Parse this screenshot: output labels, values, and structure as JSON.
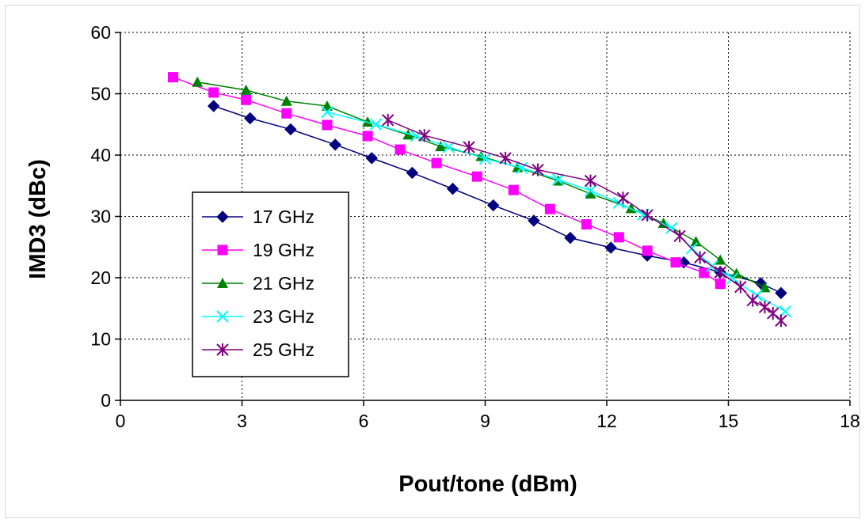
{
  "chart_data": {
    "type": "line",
    "title": "",
    "xlabel": "Pout/tone (dBm)",
    "ylabel": "IMD3 (dBc)",
    "xlim": [
      0,
      18
    ],
    "ylim": [
      0,
      60
    ],
    "xticks": [
      0,
      3,
      6,
      9,
      12,
      15,
      18
    ],
    "yticks": [
      0,
      10,
      20,
      30,
      40,
      50,
      60
    ],
    "grid": "dotted",
    "legend_position": "left",
    "series": [
      {
        "name": "17 GHz",
        "color": "#000080",
        "marker": "diamond",
        "points": [
          [
            2.3,
            48
          ],
          [
            3.2,
            46
          ],
          [
            4.2,
            44.2
          ],
          [
            5.3,
            41.7
          ],
          [
            6.2,
            39.5
          ],
          [
            7.2,
            37.1
          ],
          [
            8.2,
            34.5
          ],
          [
            9.2,
            31.8
          ],
          [
            10.2,
            29.3
          ],
          [
            11.1,
            26.5
          ],
          [
            12.1,
            24.9
          ],
          [
            13,
            23.6
          ],
          [
            13.9,
            22.5
          ],
          [
            14.8,
            20.9
          ],
          [
            15.8,
            19.1
          ],
          [
            16.3,
            17.5
          ]
        ]
      },
      {
        "name": "19 GHz",
        "color": "#ff00ff",
        "marker": "square",
        "points": [
          [
            1.3,
            52.7
          ],
          [
            2.3,
            50.2
          ],
          [
            3.1,
            49
          ],
          [
            4.1,
            46.8
          ],
          [
            5.1,
            44.9
          ],
          [
            6.1,
            43.1
          ],
          [
            6.9,
            40.9
          ],
          [
            7.8,
            38.7
          ],
          [
            8.8,
            36.5
          ],
          [
            9.7,
            34.3
          ],
          [
            10.6,
            31.2
          ],
          [
            11.5,
            28.7
          ],
          [
            12.3,
            26.6
          ],
          [
            13,
            24.4
          ],
          [
            13.7,
            22.5
          ],
          [
            14.4,
            20.8
          ],
          [
            14.8,
            19
          ]
        ]
      },
      {
        "name": "21 GHz",
        "color": "#008000",
        "marker": "triangle",
        "points": [
          [
            1.9,
            51.9
          ],
          [
            3.1,
            50.6
          ],
          [
            4.1,
            48.8
          ],
          [
            5.1,
            48
          ],
          [
            6.1,
            45.4
          ],
          [
            7.1,
            43.3
          ],
          [
            7.9,
            41.4
          ],
          [
            8.9,
            39.8
          ],
          [
            9.8,
            38
          ],
          [
            10.8,
            35.8
          ],
          [
            11.6,
            33.7
          ],
          [
            12.6,
            31.3
          ],
          [
            13.4,
            28.9
          ],
          [
            14.2,
            25.9
          ],
          [
            14.8,
            22.9
          ],
          [
            15.2,
            20.7
          ],
          [
            15.9,
            18.4
          ]
        ]
      },
      {
        "name": "23 GHz",
        "color": "#00ffff",
        "marker": "x",
        "points": [
          [
            5.1,
            47
          ],
          [
            6.3,
            45
          ],
          [
            7.3,
            43.1
          ],
          [
            8.1,
            41.3
          ],
          [
            9,
            39.4
          ],
          [
            9.9,
            37.9
          ],
          [
            10.8,
            36
          ],
          [
            11.6,
            34.2
          ],
          [
            12.3,
            32.2
          ],
          [
            12.9,
            30.3
          ],
          [
            13.6,
            28.1
          ],
          [
            14.1,
            24.8
          ],
          [
            14.6,
            21.9
          ],
          [
            15.1,
            19.9
          ],
          [
            15.7,
            17.1
          ],
          [
            16.4,
            14.5
          ]
        ]
      },
      {
        "name": "25 GHz",
        "color": "#800080",
        "marker": "star",
        "points": [
          [
            6.6,
            45.7
          ],
          [
            7.5,
            43.2
          ],
          [
            8.6,
            41.3
          ],
          [
            9.5,
            39.5
          ],
          [
            10.3,
            37.6
          ],
          [
            11.6,
            35.8
          ],
          [
            12.4,
            33
          ],
          [
            13,
            30.2
          ],
          [
            13.8,
            26.8
          ],
          [
            14.3,
            23.3
          ],
          [
            14.8,
            20.9
          ],
          [
            15.3,
            18.5
          ],
          [
            15.6,
            16.3
          ],
          [
            15.9,
            15.2
          ],
          [
            16.1,
            14.2
          ],
          [
            16.3,
            13
          ]
        ]
      }
    ]
  }
}
